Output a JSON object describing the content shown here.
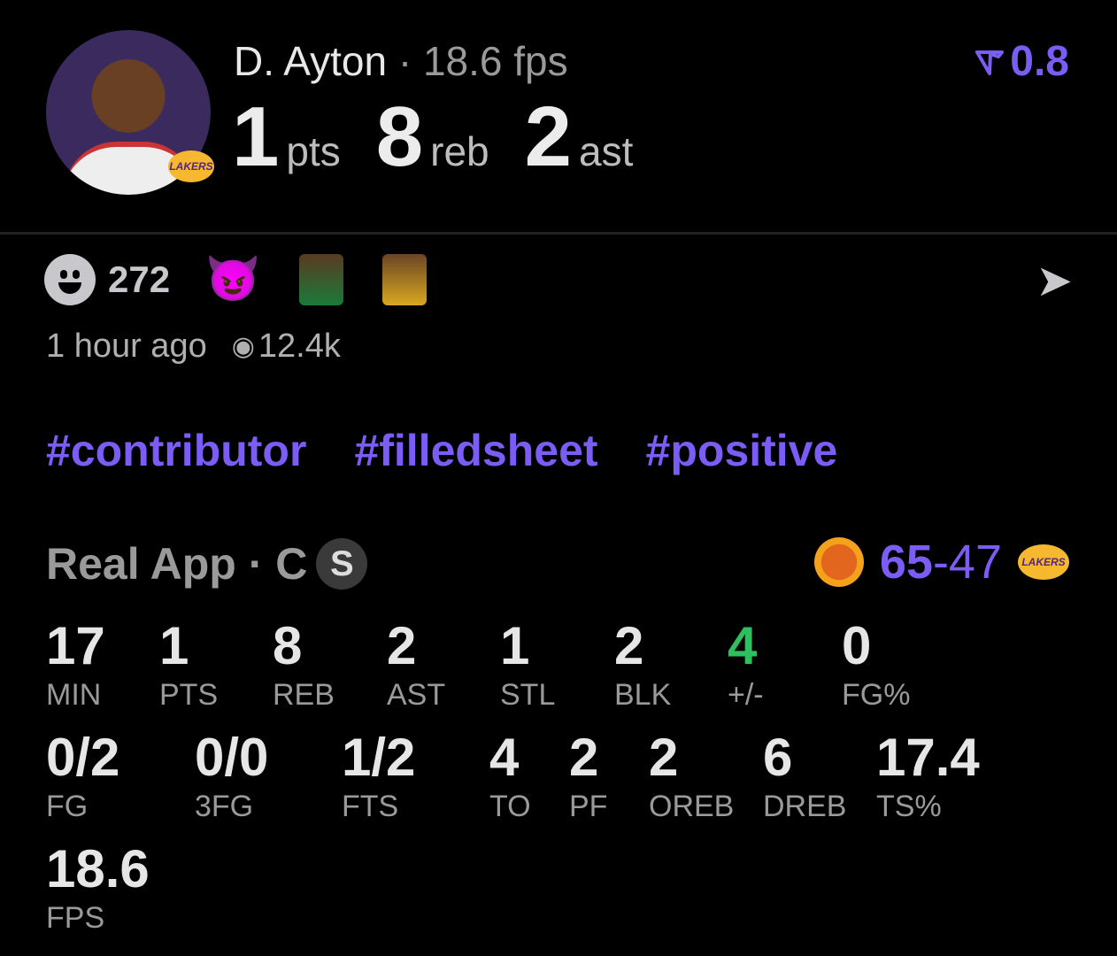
{
  "player": {
    "name": "D. Ayton",
    "separator": " · ",
    "fps_label": "18.6 fps",
    "team_logo": "LAKERS"
  },
  "headline": [
    {
      "value": "1",
      "label": "pts"
    },
    {
      "value": "8",
      "label": "reb"
    },
    {
      "value": "2",
      "label": "ast"
    }
  ],
  "rating": {
    "icon": "filter-funnel-icon",
    "value": "0.8"
  },
  "reactions": {
    "count": "272",
    "icons": [
      "smile-icon",
      "devil-emoji",
      "celtics-player-sticker",
      "lakers-player-sticker"
    ]
  },
  "meta": {
    "time": "1 hour ago",
    "views": "12.4k"
  },
  "tags": [
    "#contributor",
    "#filledsheet",
    "#positive"
  ],
  "source": {
    "label": "Real App · C",
    "badge": "S"
  },
  "game": {
    "home_score": "65",
    "separator": "-",
    "away_score": "47",
    "away_logo": "LAKERS"
  },
  "colors": {
    "accent": "#7b5cf5",
    "positive": "#2fbf5f"
  },
  "stats_row1": [
    {
      "v": "17",
      "k": "MIN"
    },
    {
      "v": "1",
      "k": "PTS"
    },
    {
      "v": "8",
      "k": "REB"
    },
    {
      "v": "2",
      "k": "AST"
    },
    {
      "v": "1",
      "k": "STL"
    },
    {
      "v": "2",
      "k": "BLK"
    },
    {
      "v": "4",
      "k": "+/-"
    },
    {
      "v": "0",
      "k": "FG%"
    }
  ],
  "stats_row2": [
    {
      "v": "0/2",
      "k": "FG"
    },
    {
      "v": "0/0",
      "k": "3FG"
    },
    {
      "v": "1/2",
      "k": "FTS"
    },
    {
      "v": "4",
      "k": "TO"
    },
    {
      "v": "2",
      "k": "PF"
    },
    {
      "v": "2",
      "k": "OREB"
    },
    {
      "v": "6",
      "k": "DREB"
    },
    {
      "v": "17.4",
      "k": "TS%"
    }
  ],
  "stats_row3": [
    {
      "v": "18.6",
      "k": "FPS"
    }
  ]
}
